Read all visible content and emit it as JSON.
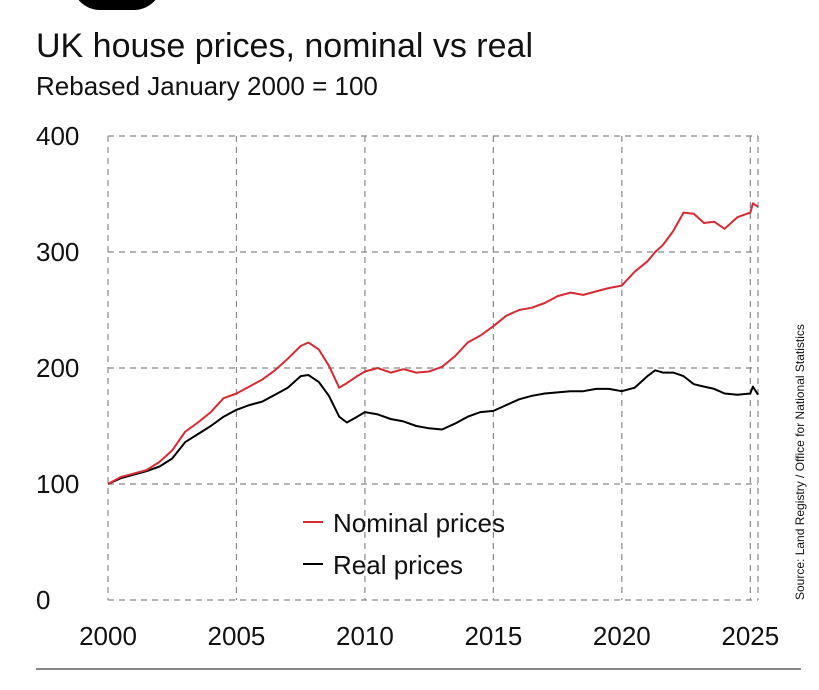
{
  "header": {
    "title": "UK house prices, nominal vs real",
    "subtitle": "Rebased January 2000 = 100"
  },
  "source": "Source: Land Registry / Office for National Statistics",
  "colors": {
    "nominal": "#d62a34",
    "real": "#000000",
    "grid": "#888888"
  },
  "chart_data": {
    "type": "line",
    "title": "UK house prices, nominal vs real",
    "subtitle": "Rebased January 2000 = 100",
    "xlabel": "",
    "ylabel": "",
    "xlim": [
      2000,
      2025.3
    ],
    "ylim": [
      0,
      400
    ],
    "x_ticks": [
      2000,
      2005,
      2010,
      2015,
      2020,
      2025
    ],
    "x_tick_labels": [
      "2000",
      "2005",
      "2010",
      "2015",
      "2020",
      "2025"
    ],
    "y_ticks": [
      0,
      100,
      200,
      300,
      400
    ],
    "y_tick_labels": [
      "0",
      "100",
      "200",
      "300",
      "400"
    ],
    "grid": true,
    "legend_position": "bottom-center",
    "series": [
      {
        "name": "Nominal prices",
        "color": "#d62a34",
        "x": [
          2000,
          2000.5,
          2001,
          2001.5,
          2002,
          2002.5,
          2003,
          2003.5,
          2004,
          2004.5,
          2005,
          2005.5,
          2006,
          2006.5,
          2007,
          2007.5,
          2007.8,
          2008.2,
          2008.6,
          2009,
          2009.3,
          2009.7,
          2010,
          2010.5,
          2011,
          2011.5,
          2012,
          2012.5,
          2013,
          2013.5,
          2014,
          2014.5,
          2015,
          2015.5,
          2016,
          2016.5,
          2017,
          2017.5,
          2018,
          2018.5,
          2019,
          2019.5,
          2020,
          2020.5,
          2021,
          2021.3,
          2021.6,
          2022,
          2022.4,
          2022.8,
          2023.2,
          2023.6,
          2024,
          2024.5,
          2025,
          2025.1,
          2025.3
        ],
        "values": [
          100,
          106,
          109,
          112,
          119,
          129,
          145,
          153,
          162,
          174,
          178,
          184,
          190,
          198,
          208,
          219,
          222,
          216,
          202,
          183,
          187,
          193,
          197,
          200,
          196,
          199,
          196,
          197,
          201,
          210,
          222,
          228,
          236,
          245,
          250,
          252,
          256,
          262,
          265,
          263,
          266,
          269,
          271,
          283,
          292,
          300,
          306,
          318,
          334,
          333,
          325,
          326,
          320,
          330,
          334,
          342,
          339
        ]
      },
      {
        "name": "Real prices",
        "color": "#000000",
        "x": [
          2000,
          2000.5,
          2001,
          2001.5,
          2002,
          2002.5,
          2003,
          2003.5,
          2004,
          2004.5,
          2005,
          2005.5,
          2006,
          2006.5,
          2007,
          2007.5,
          2007.8,
          2008.2,
          2008.6,
          2009,
          2009.3,
          2009.7,
          2010,
          2010.5,
          2011,
          2011.5,
          2012,
          2012.5,
          2013,
          2013.5,
          2014,
          2014.5,
          2015,
          2015.5,
          2016,
          2016.5,
          2017,
          2017.5,
          2018,
          2018.5,
          2019,
          2019.5,
          2020,
          2020.5,
          2021,
          2021.3,
          2021.6,
          2022,
          2022.4,
          2022.8,
          2023.2,
          2023.6,
          2024,
          2024.5,
          2025,
          2025.1,
          2025.3
        ],
        "values": [
          100,
          105,
          108,
          111,
          115,
          122,
          136,
          143,
          150,
          158,
          164,
          168,
          171,
          177,
          183,
          193,
          194,
          188,
          176,
          158,
          153,
          158,
          162,
          160,
          156,
          154,
          150,
          148,
          147,
          152,
          158,
          162,
          163,
          168,
          173,
          176,
          178,
          179,
          180,
          180,
          182,
          182,
          180,
          183,
          193,
          198,
          196,
          196,
          193,
          186,
          184,
          182,
          178,
          177,
          178,
          184,
          177
        ]
      }
    ]
  }
}
